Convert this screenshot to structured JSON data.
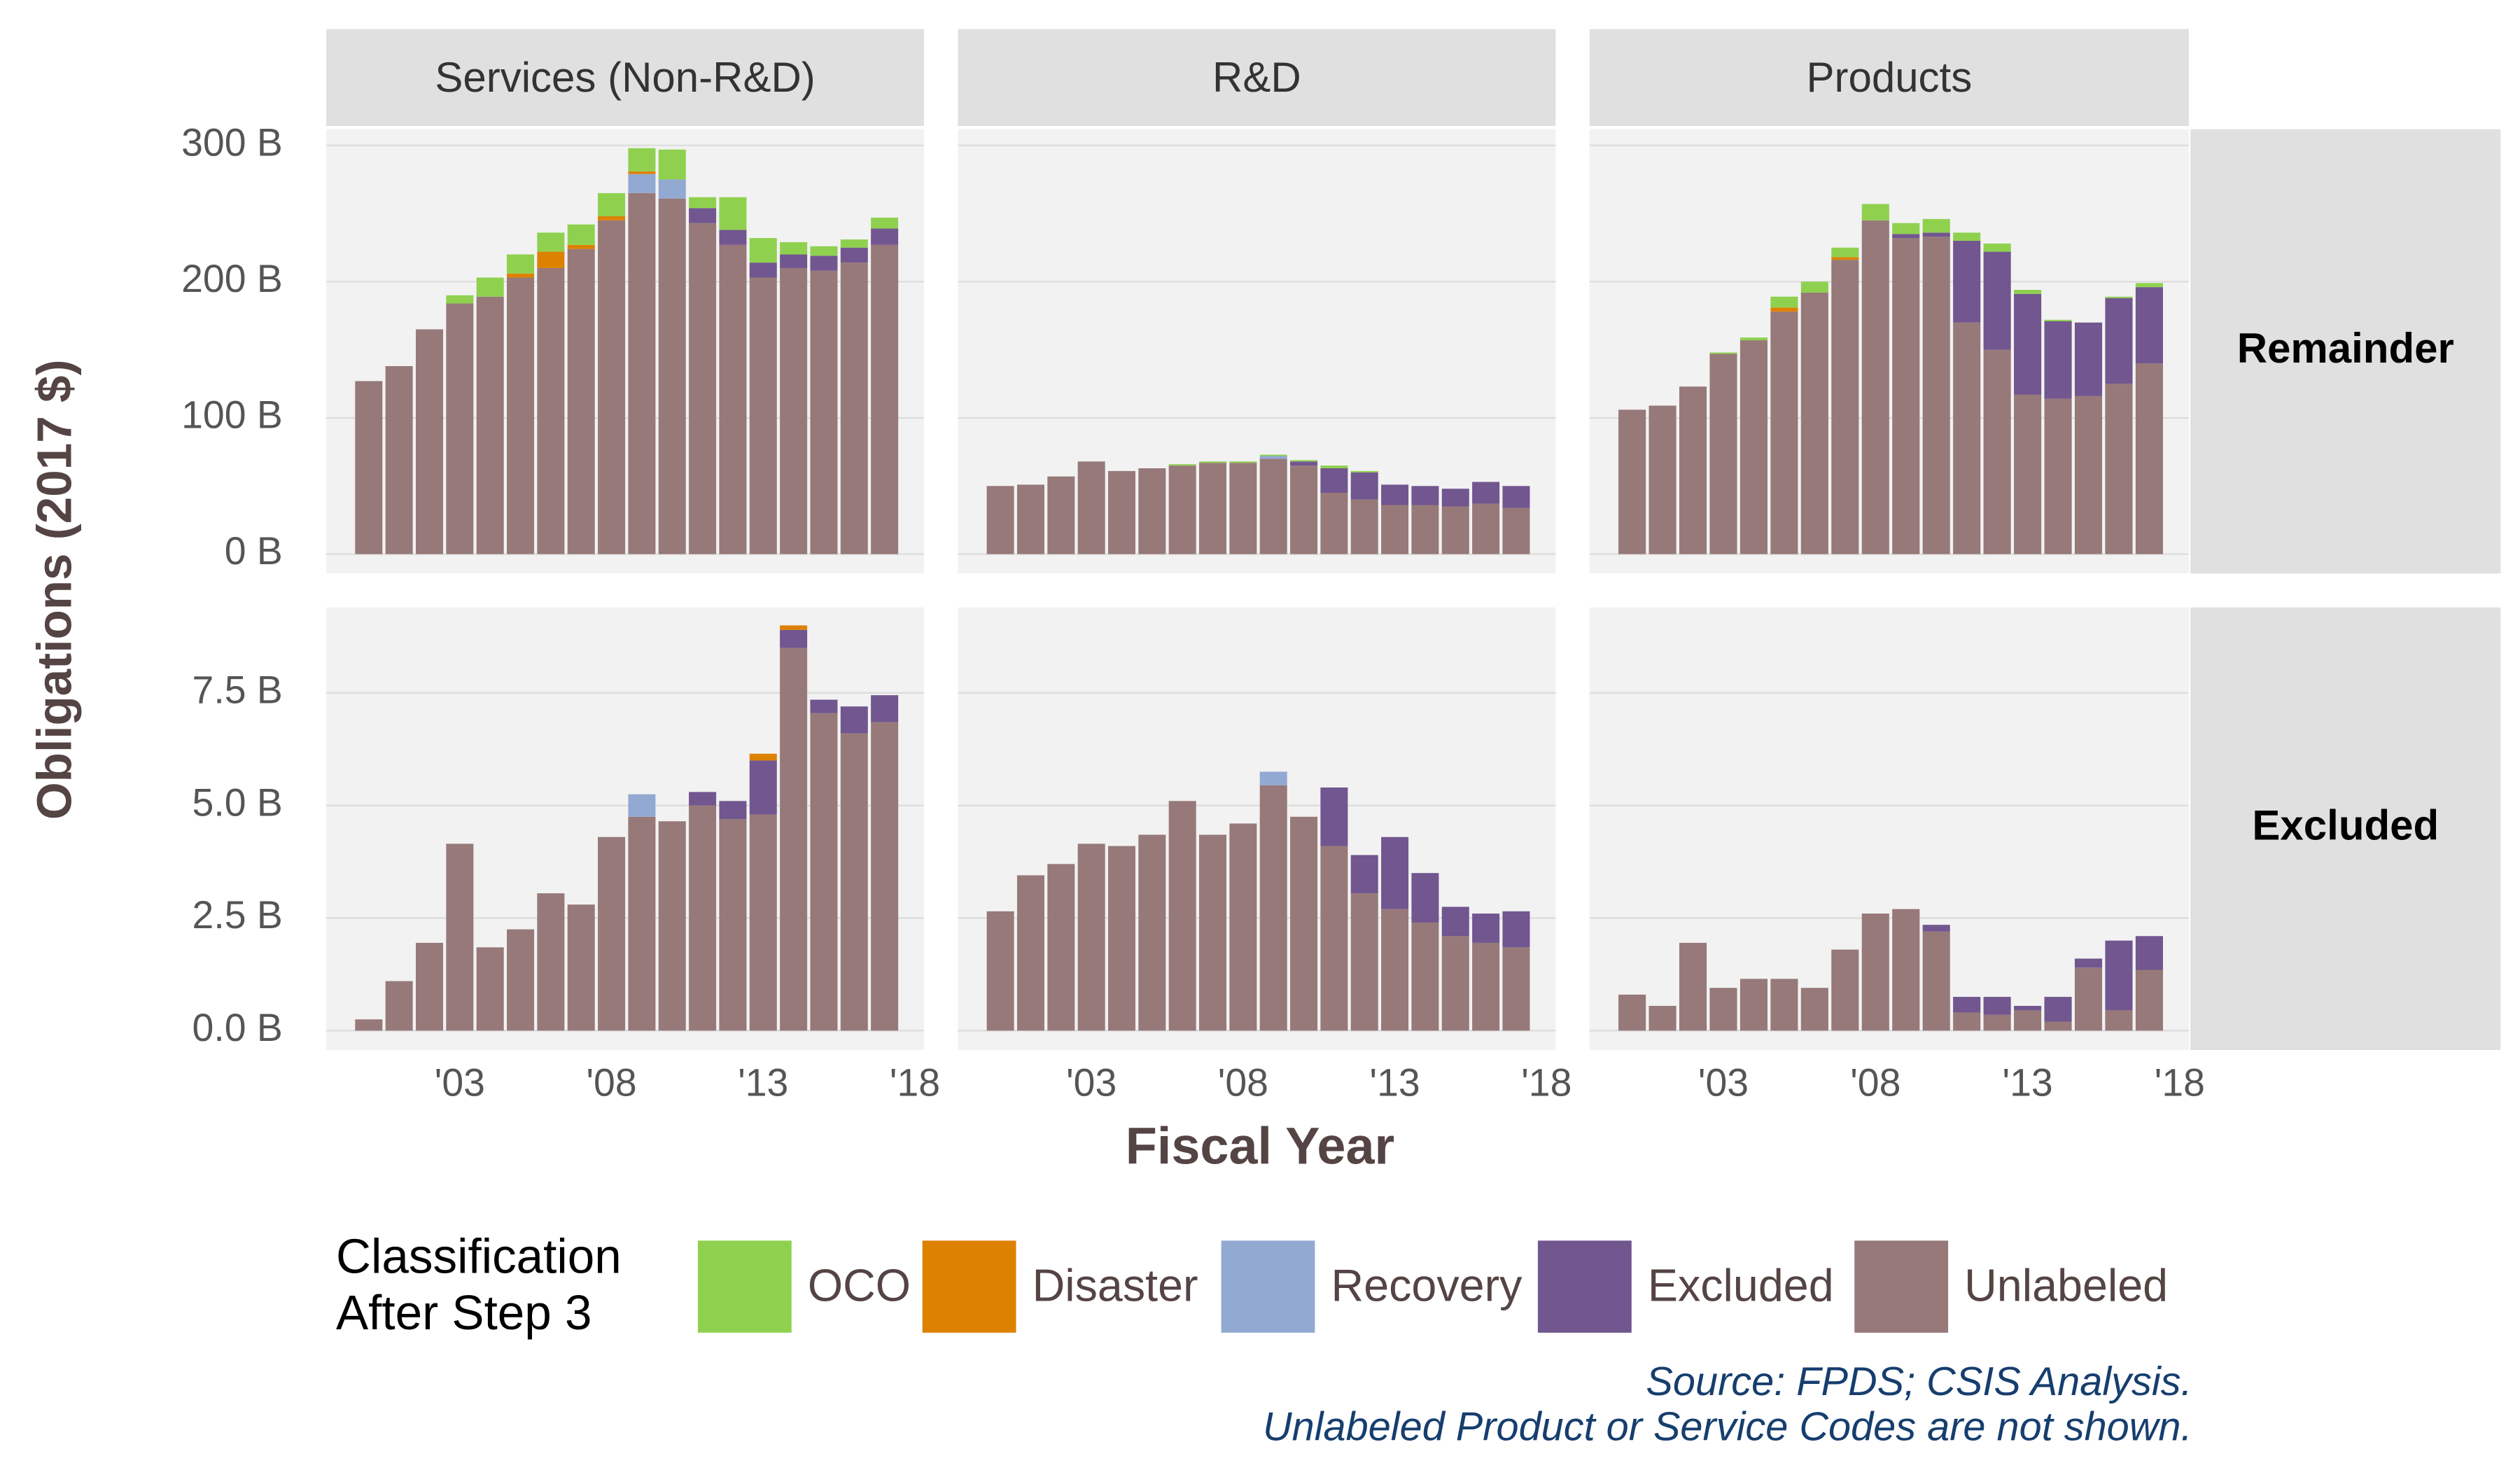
{
  "chart_data": {
    "type": "bar",
    "stacked": true,
    "grid": true,
    "legend": "bottom",
    "x_label": "Fiscal Year",
    "y_label": "Obligations (2017 $)",
    "legend_title": [
      "Classification",
      "After Step 3"
    ],
    "source": "Source: FPDS; CSIS Analysis.",
    "note": "Unlabeled Product or Service Codes are not shown.",
    "x": [
      2000,
      2001,
      2002,
      2003,
      2004,
      2005,
      2006,
      2007,
      2008,
      2009,
      2010,
      2011,
      2012,
      2013,
      2014,
      2015,
      2016,
      2017
    ],
    "xlim": [
      1998.6,
      2018.3
    ],
    "xticks": [
      {
        "value": 2003,
        "label": "'03"
      },
      {
        "value": 2008,
        "label": "'08"
      },
      {
        "value": 2013,
        "label": "'13"
      },
      {
        "value": 2018,
        "label": "'18"
      }
    ],
    "series": [
      {
        "name": "OCO",
        "color": "#8fd14f"
      },
      {
        "name": "Disaster",
        "color": "#dd8100"
      },
      {
        "name": "Recovery",
        "color": "#92a9d2"
      },
      {
        "name": "Excluded",
        "color": "#71568f"
      },
      {
        "name": "Unlabeled",
        "color": "#977979"
      }
    ],
    "columns": [
      "Services (Non-R&D)",
      "R&D",
      "Products"
    ],
    "rows": [
      {
        "label": "Remainder",
        "ylim": [
          -14.2,
          311.9
        ],
        "yticks": [
          {
            "value": 0,
            "label": "0 B"
          },
          {
            "value": 100,
            "label": "100 B"
          },
          {
            "value": 200,
            "label": "200 B"
          },
          {
            "value": 300,
            "label": "300 B"
          }
        ],
        "panels": [
          {
            "series": [
              {
                "values": [
                  0,
                  0,
                  0,
                  6,
                  14,
                  14,
                  14,
                  15,
                  17,
                  17,
                  22,
                  8,
                  24,
                  18,
                  9,
                  7,
                  6,
                  8
                ]
              },
              {
                "values": [
                  0,
                  0,
                  0,
                  0,
                  0,
                  3,
                  12,
                  3,
                  3,
                  2,
                  0,
                  0,
                  0,
                  0,
                  0,
                  0,
                  0,
                  0
                ]
              },
              {
                "values": [
                  0,
                  0,
                  0,
                  0,
                  0,
                  0,
                  0,
                  0,
                  0,
                  14,
                  14,
                  0,
                  0,
                  0,
                  0,
                  0,
                  0,
                  0
                ]
              },
              {
                "values": [
                  0,
                  0,
                  0,
                  0,
                  0,
                  0,
                  0,
                  0,
                  0,
                  0,
                  0,
                  11,
                  11,
                  11,
                  10,
                  11,
                  11,
                  12
                ]
              },
              {
                "values": [
                  127,
                  138,
                  165,
                  184,
                  189,
                  203,
                  210,
                  224,
                  245,
                  265,
                  261,
                  243,
                  227,
                  203,
                  210,
                  208,
                  214,
                  227
                ]
              }
            ]
          },
          {
            "series": [
              {
                "values": [
                  0,
                  0,
                  0,
                  0,
                  0,
                  0,
                  1,
                  1,
                  1,
                  1,
                  1,
                  2,
                  1,
                  0,
                  0,
                  0,
                  0,
                  0
                ]
              },
              {
                "values": [
                  0,
                  0,
                  0,
                  0,
                  0,
                  0,
                  0,
                  0,
                  0,
                  0,
                  0,
                  0,
                  0,
                  0,
                  0,
                  0,
                  0,
                  0
                ]
              },
              {
                "values": [
                  0,
                  0,
                  0,
                  0,
                  0,
                  0,
                  0,
                  0,
                  0,
                  2,
                  0,
                  0,
                  0,
                  0,
                  0,
                  0,
                  0,
                  0
                ]
              },
              {
                "values": [
                  0,
                  0,
                  0,
                  0,
                  0,
                  0,
                  0,
                  0,
                  0,
                  0,
                  3,
                  18,
                  20,
                  15,
                  14,
                  13,
                  16,
                  16
                ]
              },
              {
                "values": [
                  50,
                  51,
                  57,
                  68,
                  61,
                  63,
                  65,
                  67,
                  67,
                  70,
                  65,
                  45,
                  40,
                  36,
                  36,
                  35,
                  37,
                  34
                ]
              }
            ]
          },
          {
            "series": [
              {
                "values": [
                  0,
                  0,
                  0,
                  1,
                  2,
                  8,
                  8,
                  7,
                  12,
                  8,
                  10,
                  6,
                  6,
                  3,
                  1,
                  0,
                  1,
                  3
                ]
              },
              {
                "values": [
                  0,
                  0,
                  0,
                  0,
                  0,
                  3,
                  0,
                  2,
                  0,
                  0,
                  0,
                  0,
                  0,
                  0,
                  0,
                  0,
                  0,
                  0
                ]
              },
              {
                "values": [
                  0,
                  0,
                  0,
                  0,
                  0,
                  0,
                  0,
                  0,
                  0,
                  0,
                  0,
                  0,
                  0,
                  0,
                  0,
                  0,
                  0,
                  0
                ]
              },
              {
                "values": [
                  0,
                  0,
                  0,
                  0,
                  0,
                  0,
                  0,
                  0,
                  0,
                  3,
                  3,
                  60,
                  72,
                  74,
                  57,
                  54,
                  63,
                  56
                ]
              },
              {
                "values": [
                  106,
                  109,
                  123,
                  147,
                  157,
                  178,
                  192,
                  216,
                  245,
                  232,
                  233,
                  170,
                  150,
                  117,
                  114,
                  116,
                  125,
                  140
                ]
              }
            ]
          }
        ]
      },
      {
        "label": "Excluded",
        "ylim": [
          -0.43,
          9.4
        ],
        "yticks": [
          {
            "value": 0,
            "label": "0.0 B"
          },
          {
            "value": 2.5,
            "label": "2.5 B"
          },
          {
            "value": 5,
            "label": "5.0 B"
          },
          {
            "value": 7.5,
            "label": "7.5 B"
          }
        ],
        "panels": [
          {
            "series": [
              {
                "values": [
                  0,
                  0,
                  0,
                  0,
                  0,
                  0,
                  0,
                  0,
                  0,
                  0,
                  0,
                  0,
                  0,
                  0,
                  0,
                  0,
                  0,
                  0
                ]
              },
              {
                "values": [
                  0,
                  0,
                  0,
                  0,
                  0,
                  0,
                  0,
                  0,
                  0,
                  0,
                  0,
                  0,
                  0,
                  0.15,
                  0.1,
                  0,
                  0,
                  0
                ]
              },
              {
                "values": [
                  0,
                  0,
                  0,
                  0,
                  0,
                  0,
                  0,
                  0,
                  0,
                  0.5,
                  0,
                  0,
                  0,
                  0,
                  0,
                  0,
                  0,
                  0
                ]
              },
              {
                "values": [
                  0,
                  0,
                  0,
                  0,
                  0,
                  0,
                  0,
                  0,
                  0,
                  0,
                  0,
                  0.3,
                  0.4,
                  1.2,
                  0.4,
                  0.3,
                  0.6,
                  0.6
                ]
              },
              {
                "values": [
                  0.25,
                  1.1,
                  1.95,
                  4.15,
                  1.85,
                  2.25,
                  3.05,
                  2.8,
                  4.3,
                  4.75,
                  4.65,
                  5.0,
                  4.7,
                  4.8,
                  8.5,
                  7.05,
                  6.6,
                  6.85
                ]
              }
            ]
          },
          {
            "series": [
              {
                "values": [
                  0,
                  0,
                  0,
                  0,
                  0,
                  0,
                  0,
                  0,
                  0,
                  0,
                  0,
                  0,
                  0,
                  0,
                  0,
                  0,
                  0,
                  0
                ]
              },
              {
                "values": [
                  0,
                  0,
                  0,
                  0,
                  0,
                  0,
                  0,
                  0,
                  0,
                  0,
                  0,
                  0,
                  0,
                  0,
                  0,
                  0,
                  0,
                  0
                ]
              },
              {
                "values": [
                  0,
                  0,
                  0,
                  0,
                  0,
                  0,
                  0,
                  0,
                  0,
                  0.3,
                  0,
                  0,
                  0,
                  0,
                  0,
                  0,
                  0,
                  0
                ]
              },
              {
                "values": [
                  0,
                  0,
                  0,
                  0,
                  0,
                  0,
                  0,
                  0,
                  0,
                  0,
                  0,
                  1.3,
                  0.85,
                  1.6,
                  1.1,
                  0.65,
                  0.65,
                  0.8
                ]
              },
              {
                "values": [
                  2.65,
                  3.45,
                  3.7,
                  4.15,
                  4.1,
                  4.35,
                  5.1,
                  4.35,
                  4.6,
                  5.45,
                  4.75,
                  4.1,
                  3.05,
                  2.7,
                  2.4,
                  2.1,
                  1.95,
                  1.85
                ]
              }
            ]
          },
          {
            "series": [
              {
                "values": [
                  0,
                  0,
                  0,
                  0,
                  0,
                  0,
                  0,
                  0,
                  0,
                  0,
                  0,
                  0,
                  0,
                  0,
                  0,
                  0,
                  0,
                  0
                ]
              },
              {
                "values": [
                  0,
                  0,
                  0,
                  0,
                  0,
                  0,
                  0,
                  0,
                  0,
                  0,
                  0,
                  0,
                  0,
                  0,
                  0,
                  0,
                  0,
                  0
                ]
              },
              {
                "values": [
                  0,
                  0,
                  0,
                  0,
                  0,
                  0,
                  0,
                  0,
                  0,
                  0,
                  0,
                  0,
                  0,
                  0,
                  0,
                  0,
                  0,
                  0
                ]
              },
              {
                "values": [
                  0,
                  0,
                  0,
                  0,
                  0,
                  0,
                  0,
                  0,
                  0,
                  0,
                  0.15,
                  0.35,
                  0.4,
                  0.1,
                  0.55,
                  0.2,
                  1.55,
                  0.75
                ]
              },
              {
                "values": [
                  0.8,
                  0.55,
                  1.95,
                  0.95,
                  1.15,
                  1.15,
                  0.95,
                  1.8,
                  2.6,
                  2.7,
                  2.2,
                  0.4,
                  0.35,
                  0.45,
                  0.2,
                  1.4,
                  0.45,
                  1.35
                ]
              }
            ]
          }
        ]
      }
    ]
  }
}
